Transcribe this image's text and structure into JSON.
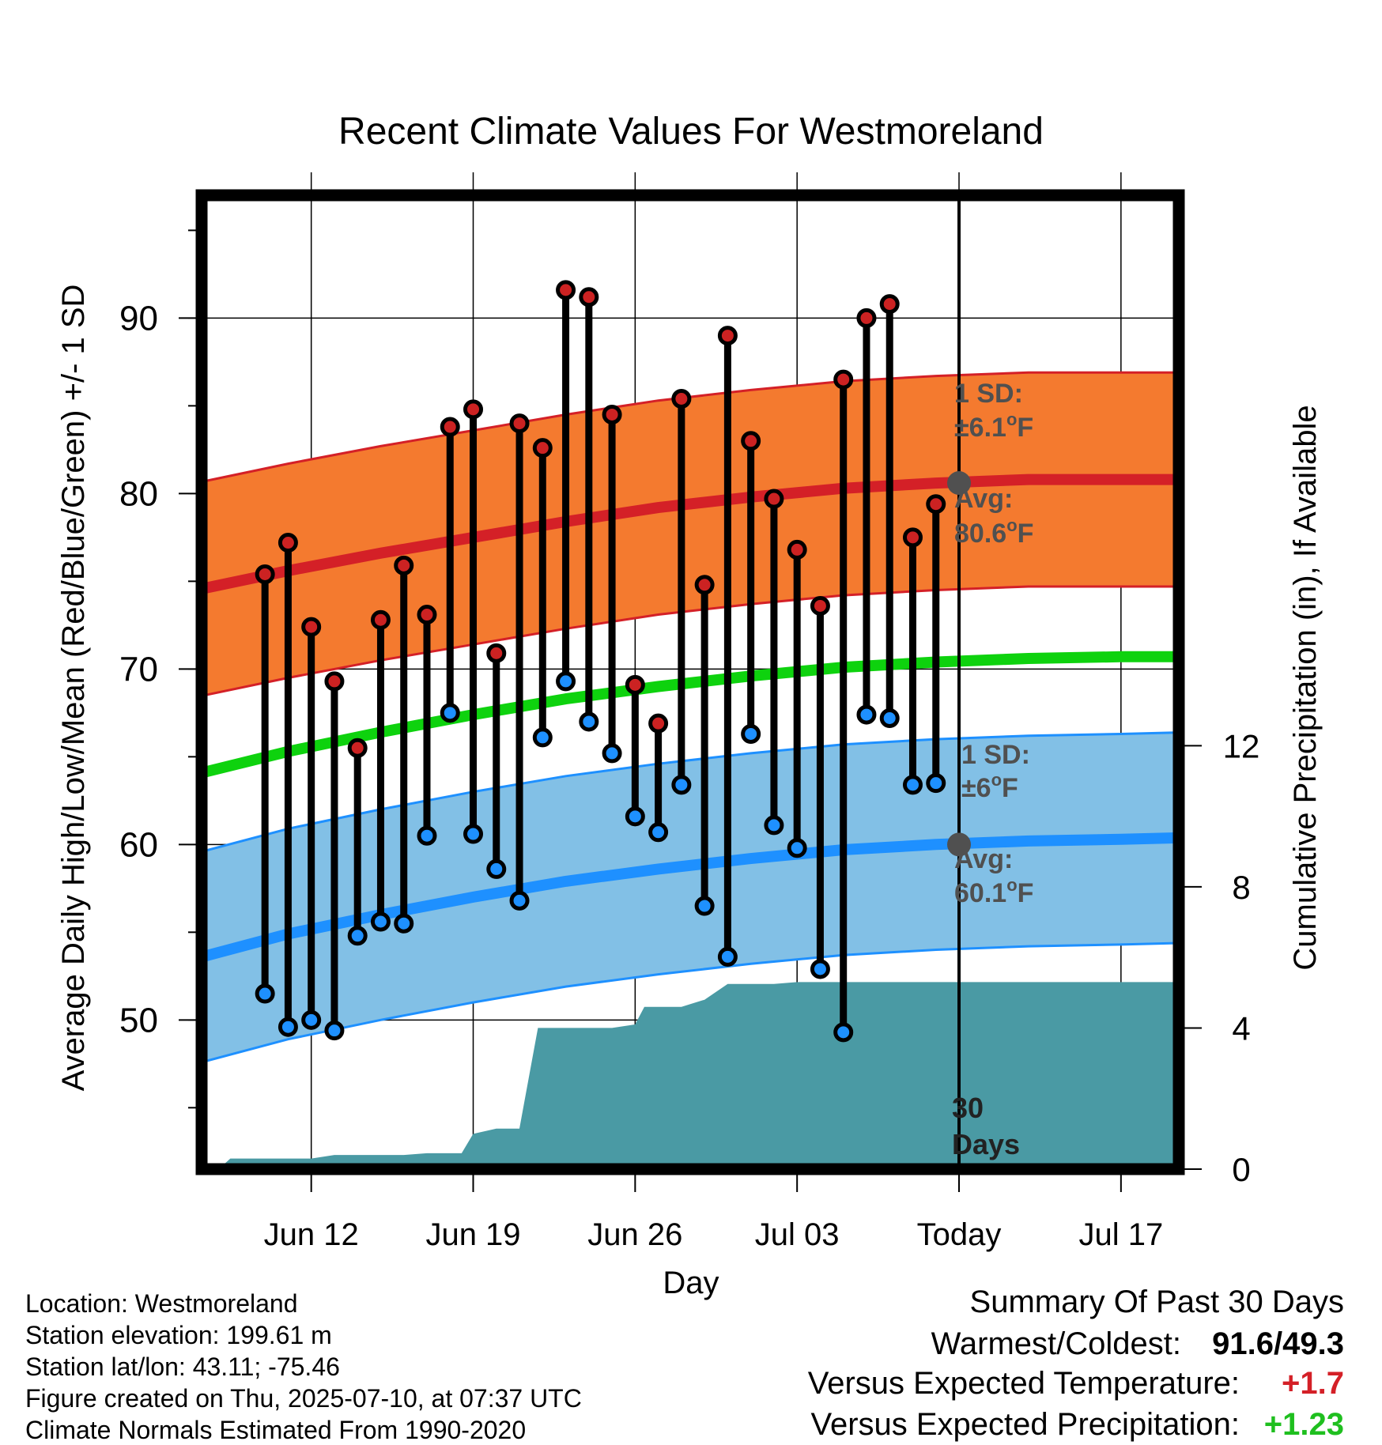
{
  "chart_data": {
    "type": "line",
    "title": "Recent Climate Values For Westmoreland",
    "xlabel": "Day",
    "ylabel_left": "Average Daily High/Low/Mean (Red/Blue/Green) +/- 1 SD",
    "ylabel_right": "Cumulative Precipitation (in), If Available",
    "ylim_left": [
      41.5,
      97
    ],
    "ylim_right": [
      0,
      27.6
    ],
    "xlim_days": [
      -32.5,
      9.5
    ],
    "x_ticks": [
      {
        "day": -28,
        "label": "Jun 12"
      },
      {
        "day": -21,
        "label": "Jun 19"
      },
      {
        "day": -14,
        "label": "Jun 26"
      },
      {
        "day": -7,
        "label": "Jul 03"
      },
      {
        "day": 0,
        "label": "Today"
      },
      {
        "day": 7,
        "label": "Jul 17"
      }
    ],
    "y_ticks_left": [
      50,
      60,
      70,
      80,
      90
    ],
    "y_ticks_right": [
      0,
      4,
      8,
      12
    ],
    "grid": true,
    "today_marker": {
      "day": 0,
      "label_line1": "30",
      "label_line2": "Days"
    },
    "daily": {
      "days": [
        -30,
        -29,
        -28,
        -27,
        -26,
        -25,
        -24,
        -23,
        -22,
        -21,
        -20,
        -19,
        -18,
        -17,
        -16,
        -15,
        -14,
        -13,
        -12,
        -11,
        -10,
        -9,
        -8,
        -7,
        -6,
        -5,
        -4,
        -3,
        -2,
        -1
      ],
      "highs": [
        75.4,
        77.2,
        72.4,
        69.3,
        65.5,
        72.8,
        75.9,
        73.1,
        83.8,
        84.8,
        70.9,
        84.0,
        82.6,
        91.6,
        91.2,
        84.5,
        69.1,
        66.9,
        85.4,
        74.8,
        89.0,
        83.0,
        79.7,
        76.8,
        73.6,
        86.5,
        90.0,
        90.8,
        77.5,
        79.4
      ],
      "lows": [
        51.5,
        49.6,
        50.0,
        49.4,
        54.8,
        55.6,
        55.5,
        60.5,
        67.5,
        60.6,
        58.6,
        56.8,
        66.1,
        69.3,
        67.0,
        65.2,
        61.6,
        60.7,
        63.4,
        56.5,
        53.6,
        66.3,
        61.1,
        59.8,
        52.9,
        49.3,
        67.4,
        67.2,
        63.4,
        63.5
      ]
    },
    "normals": {
      "days": [
        -33,
        -29,
        -25,
        -21,
        -17,
        -13,
        -9,
        -5,
        -1,
        3,
        7,
        10
      ],
      "high_avg": [
        74.5,
        75.6,
        76.6,
        77.5,
        78.4,
        79.2,
        79.8,
        80.3,
        80.6,
        80.8,
        80.8,
        80.8
      ],
      "high_sd": 6.1,
      "mean_avg": [
        64.0,
        65.3,
        66.4,
        67.4,
        68.3,
        69.0,
        69.6,
        70.1,
        70.4,
        70.6,
        70.7,
        70.7
      ],
      "low_avg": [
        53.5,
        54.9,
        56.0,
        57.0,
        57.9,
        58.6,
        59.2,
        59.7,
        60.0,
        60.2,
        60.3,
        60.4
      ],
      "low_sd": 6.0
    },
    "precipitation": {
      "days": [
        -32.5,
        -32,
        -31.5,
        -30,
        -29,
        -28,
        -27,
        -26,
        -25,
        -24,
        -23,
        -22,
        -21.5,
        -21,
        -20,
        -19,
        -18.2,
        -18,
        -17,
        -16,
        -15,
        -14,
        -13.6,
        -13,
        -12,
        -11,
        -10,
        -9.2,
        -9,
        -8,
        -7,
        -6,
        -5,
        -4,
        -3,
        -2,
        -1,
        0,
        1,
        2,
        3,
        4,
        5,
        6,
        7,
        8,
        9,
        9.5
      ],
      "values": [
        0,
        0,
        0.3,
        0.3,
        0.3,
        0.3,
        0.4,
        0.4,
        0.4,
        0.4,
        0.45,
        0.45,
        0.45,
        1.0,
        1.15,
        1.15,
        4.0,
        4.0,
        4.0,
        4.0,
        4.0,
        4.1,
        4.6,
        4.6,
        4.6,
        4.8,
        5.25,
        5.25,
        5.25,
        5.25,
        5.3,
        5.3,
        5.3,
        5.3,
        5.3,
        5.3,
        5.3,
        5.3,
        5.3,
        5.3,
        5.3,
        5.3,
        5.3,
        5.3,
        5.3,
        5.3,
        5.3,
        5.3
      ]
    },
    "annotations": {
      "high_sd_label": "1 SD:",
      "high_sd_value": "±6.1",
      "high_avg_label": "Avg:",
      "high_avg_value": "80.6",
      "low_sd_label": "1 SD:",
      "low_sd_value": "±6",
      "low_avg_label": "Avg:",
      "low_avg_value": "60.1",
      "degree_unit_sup": "o",
      "degree_unit": "F"
    },
    "colors": {
      "high_band": "#f47a2f",
      "high_line": "#d42027",
      "low_band": "#82c0e6",
      "low_line": "#1e90ff",
      "mean_line": "#0ed20e",
      "precip": "#4a9aa4",
      "high_dot": "#cc2222",
      "low_dot": "#1e90ff",
      "annotation": "#505050",
      "summary_temp": "#d42027",
      "summary_precip": "#1fbf1f"
    }
  },
  "footer": {
    "location": "Location: Westmoreland",
    "elevation": "Station elevation: 199.61 m",
    "latlon": "Station lat/lon: 43.11; -75.46",
    "created": "Figure created on Thu, 2025-07-10, at 07:37 UTC",
    "normals": "Climate Normals Estimated From 1990-2020"
  },
  "summary": {
    "heading": "Summary Of Past 30 Days",
    "warm_cold_label": "Warmest/Coldest:",
    "warm_cold_value": "91.6/49.3",
    "temp_label": "Versus Expected Temperature:",
    "temp_value": "+1.7",
    "precip_label": "Versus Expected Precipitation:",
    "precip_value": "+1.23"
  }
}
